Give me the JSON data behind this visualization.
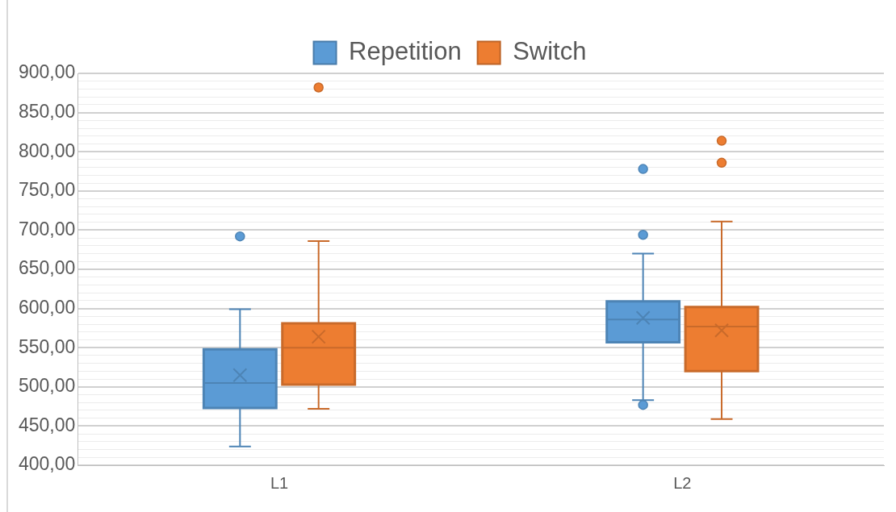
{
  "chart_data": {
    "type": "box",
    "categories": [
      "L1",
      "L2"
    ],
    "series": [
      {
        "name": "Repetition",
        "color": "#5b9bd5",
        "boxes": [
          {
            "low": 424,
            "q1": 473,
            "median": 505,
            "q3": 548,
            "high": 599,
            "mean": 515,
            "outliers": [
              692
            ]
          },
          {
            "low": 483,
            "q1": 557,
            "median": 586,
            "q3": 609,
            "high": 670,
            "mean": 588,
            "outliers": [
              778,
              694,
              477
            ]
          }
        ]
      },
      {
        "name": "Switch",
        "color": "#ed7d31",
        "boxes": [
          {
            "low": 472,
            "q1": 503,
            "median": 550,
            "q3": 581,
            "high": 686,
            "mean": 564,
            "outliers": [
              882
            ]
          },
          {
            "low": 459,
            "q1": 520,
            "median": 577,
            "q3": 602,
            "high": 711,
            "mean": 572,
            "outliers": [
              814,
              786
            ]
          }
        ]
      }
    ],
    "ylim": [
      400,
      900
    ],
    "yticks": [
      {
        "value": 400,
        "label": "400,00"
      },
      {
        "value": 410,
        "label": null
      },
      {
        "value": 420,
        "label": null
      },
      {
        "value": 430,
        "label": null
      },
      {
        "value": 440,
        "label": null
      },
      {
        "value": 450,
        "label": "450,00"
      },
      {
        "value": 460,
        "label": null
      },
      {
        "value": 470,
        "label": null
      },
      {
        "value": 480,
        "label": null
      },
      {
        "value": 490,
        "label": null
      },
      {
        "value": 500,
        "label": "500,00"
      },
      {
        "value": 510,
        "label": null
      },
      {
        "value": 520,
        "label": null
      },
      {
        "value": 530,
        "label": null
      },
      {
        "value": 540,
        "label": null
      },
      {
        "value": 550,
        "label": "550,00"
      },
      {
        "value": 560,
        "label": null
      },
      {
        "value": 570,
        "label": null
      },
      {
        "value": 580,
        "label": null
      },
      {
        "value": 590,
        "label": null
      },
      {
        "value": 600,
        "label": "600,00"
      },
      {
        "value": 610,
        "label": null
      },
      {
        "value": 620,
        "label": null
      },
      {
        "value": 630,
        "label": null
      },
      {
        "value": 640,
        "label": null
      },
      {
        "value": 650,
        "label": "650,00"
      },
      {
        "value": 660,
        "label": null
      },
      {
        "value": 670,
        "label": null
      },
      {
        "value": 680,
        "label": null
      },
      {
        "value": 690,
        "label": null
      },
      {
        "value": 700,
        "label": "700,00"
      },
      {
        "value": 710,
        "label": null
      },
      {
        "value": 720,
        "label": null
      },
      {
        "value": 730,
        "label": null
      },
      {
        "value": 740,
        "label": null
      },
      {
        "value": 750,
        "label": "750,00"
      },
      {
        "value": 760,
        "label": null
      },
      {
        "value": 770,
        "label": null
      },
      {
        "value": 780,
        "label": null
      },
      {
        "value": 790,
        "label": null
      },
      {
        "value": 800,
        "label": "800,00"
      },
      {
        "value": 810,
        "label": null
      },
      {
        "value": 820,
        "label": null
      },
      {
        "value": 830,
        "label": null
      },
      {
        "value": 840,
        "label": null
      },
      {
        "value": 850,
        "label": "850,00"
      },
      {
        "value": 860,
        "label": null
      },
      {
        "value": 870,
        "label": null
      },
      {
        "value": 880,
        "label": null
      },
      {
        "value": 890,
        "label": null
      },
      {
        "value": 900,
        "label": "900,00"
      }
    ],
    "grid": true,
    "legend": "top"
  }
}
